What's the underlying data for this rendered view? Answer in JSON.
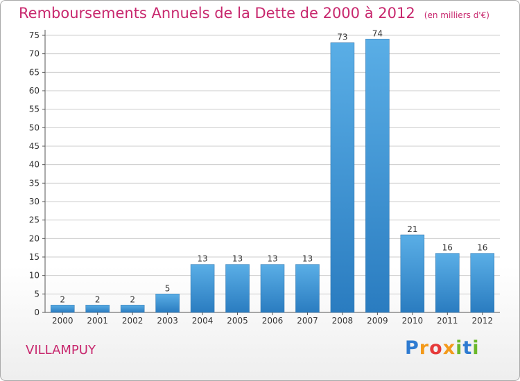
{
  "header": {
    "title": "Remboursements Annuels de la Dette de 2000 à 2012",
    "unit": "(en milliers d'€)"
  },
  "footer": {
    "location": "VILLAMPUY",
    "brand": "Proxiti"
  },
  "colors": {
    "title": "#c8286e",
    "bar_top": "#5aaee6",
    "bar_bottom": "#2a7cc0",
    "grid": "#cccccc"
  },
  "chart_data": {
    "type": "bar",
    "title": "Remboursements Annuels de la Dette de 2000 à 2012",
    "subtitle": "(en milliers d'€)",
    "categories": [
      "2000",
      "2001",
      "2002",
      "2003",
      "2004",
      "2005",
      "2006",
      "2007",
      "2008",
      "2009",
      "2010",
      "2011",
      "2012"
    ],
    "values": [
      2,
      2,
      2,
      5,
      13,
      13,
      13,
      13,
      73,
      74,
      21,
      16,
      16
    ],
    "ylim": [
      0,
      75
    ],
    "yticks": [
      0,
      5,
      10,
      15,
      20,
      25,
      30,
      35,
      40,
      45,
      50,
      55,
      60,
      65,
      70,
      75
    ],
    "grid": true,
    "legend": "none"
  }
}
